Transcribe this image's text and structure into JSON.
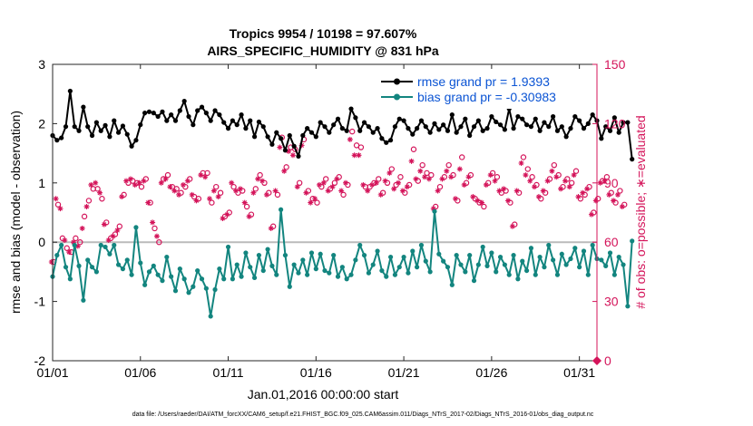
{
  "chart_data": {
    "type": "line",
    "title": "Tropics 9954 / 10198 = 97.607%",
    "subtitle": "AIRS_SPECIFIC_HUMIDITY @ 831 hPa",
    "xlabel": "Jan.01,2016 00:00:00 start",
    "ylabel": "rmse and bias (model - observation)",
    "ylabel_right": "# of obs: o=possible; ∗=evaluated",
    "x_ticks": [
      "01/01",
      "01/06",
      "01/11",
      "01/16",
      "01/21",
      "01/26",
      "01/31"
    ],
    "x_tick_days": [
      1,
      6,
      11,
      16,
      21,
      26,
      31
    ],
    "xlim": [
      1,
      32
    ],
    "y_ticks": [
      "-2",
      "-1",
      "0",
      "1",
      "2",
      "3"
    ],
    "ylim": [
      -2,
      3
    ],
    "y_ticks_right": [
      "0",
      "30",
      "60",
      "90",
      "120",
      "150"
    ],
    "ylim_right": [
      0,
      150
    ],
    "zero_line": 0,
    "legend": [
      "rmse grand pr = 1.9393",
      "bias grand pr = -0.30983"
    ],
    "colors": {
      "rmse": "#000000",
      "bias": "#13857f",
      "obs": "#d4145a",
      "legend_text": "#0b54d4",
      "zero_line": "#bbbbbb"
    },
    "series": [
      {
        "name": "rmse",
        "x_start": 1.0,
        "x_step": 0.25,
        "values": [
          1.8,
          1.72,
          1.76,
          1.95,
          2.55,
          1.95,
          1.88,
          2.28,
          1.95,
          1.8,
          2.02,
          1.88,
          1.97,
          1.78,
          2.05,
          1.85,
          1.96,
          1.82,
          1.62,
          1.72,
          1.98,
          2.18,
          2.2,
          2.18,
          2.12,
          2.2,
          2.05,
          2.15,
          2.05,
          2.22,
          2.38,
          2.12,
          1.98,
          2.22,
          2.28,
          2.18,
          2.05,
          2.22,
          2.15,
          2.02,
          1.92,
          2.05,
          1.98,
          2.15,
          1.92,
          2.05,
          1.78,
          2.03,
          1.95,
          1.78,
          1.65,
          1.85,
          1.75,
          1.55,
          1.8,
          1.62,
          1.45,
          1.8,
          1.92,
          1.85,
          1.78,
          2.02,
          1.95,
          1.85,
          1.98,
          2.08,
          1.92,
          1.88,
          2.25,
          2.1,
          1.88,
          2.02,
          1.95,
          1.85,
          1.92,
          1.75,
          1.68,
          1.72,
          1.95,
          2.08,
          2.05,
          1.92,
          1.82,
          1.92,
          2.05,
          1.95,
          1.85,
          2.0,
          1.9,
          1.98,
          1.88,
          2.15,
          1.85,
          1.95,
          2.08,
          1.8,
          1.95,
          2.05,
          1.88,
          1.92,
          2.12,
          2.03,
          1.98,
          1.9,
          2.25,
          1.92,
          2.12,
          2.08,
          1.98,
          1.95,
          2.08,
          1.88,
          2.02,
          1.95,
          2.12,
          1.88,
          1.95,
          1.78,
          1.92,
          2.12,
          2.05,
          1.92,
          2.0,
          2.15,
          2.05,
          1.75,
          1.95,
          1.88,
          2.1,
          1.85,
          2.02,
          2.02,
          1.4
        ]
      },
      {
        "name": "bias",
        "x_start": 1.0,
        "x_step": 0.25,
        "values": [
          -0.58,
          -0.22,
          -0.05,
          -0.42,
          -0.62,
          -0.05,
          -0.4,
          -0.98,
          -0.3,
          -0.42,
          -0.5,
          -0.05,
          -0.08,
          -0.2,
          -0.05,
          -0.38,
          -0.45,
          -0.3,
          -0.55,
          0.25,
          -0.35,
          -0.72,
          -0.5,
          -0.4,
          -0.55,
          -0.65,
          -0.25,
          -0.58,
          -0.82,
          -0.45,
          -0.62,
          -0.85,
          -0.75,
          -0.48,
          -0.62,
          -0.78,
          -1.25,
          -0.8,
          -0.45,
          -0.62,
          -0.08,
          -0.62,
          -0.38,
          -0.58,
          -0.18,
          -0.42,
          -0.6,
          -0.22,
          -0.48,
          -0.12,
          -0.4,
          -0.55,
          0.55,
          -0.22,
          -0.75,
          -0.38,
          -0.52,
          -0.3,
          -0.55,
          -0.18,
          -0.45,
          -0.2,
          -0.48,
          -0.52,
          -0.22,
          -0.58,
          -0.42,
          -0.62,
          -0.55,
          -0.3,
          -0.05,
          -0.22,
          -0.52,
          -0.38,
          -0.15,
          -0.48,
          -0.58,
          -0.25,
          -0.55,
          -0.42,
          -0.25,
          -0.52,
          -0.15,
          -0.42,
          -0.05,
          -0.32,
          -0.5,
          0.52,
          -0.2,
          -0.32,
          -0.42,
          -0.72,
          -0.22,
          -0.38,
          -0.5,
          -0.22,
          -0.65,
          -0.38,
          -0.08,
          -0.4,
          -0.18,
          -0.5,
          -0.25,
          -0.38,
          -0.55,
          -0.22,
          -0.62,
          -0.32,
          -0.48,
          -0.1,
          -0.55,
          -0.25,
          -0.42,
          -0.05,
          -0.3,
          -0.55,
          -0.2,
          -0.38,
          -0.28,
          -0.1,
          -0.42,
          -0.15,
          -0.55,
          -0.05,
          -0.28,
          -0.3,
          -0.4,
          -0.18,
          -0.55,
          -0.25,
          -0.38,
          -1.08,
          0.02
        ]
      },
      {
        "name": "possible obs (o)",
        "marker": "o",
        "x_start": 1.0,
        "x_step": 0.25,
        "values": [
          50,
          79,
          62,
          57,
          55,
          62,
          60,
          73,
          81,
          87,
          87,
          82,
          70,
          62,
          64,
          68,
          84,
          90,
          91,
          90,
          88,
          92,
          80,
          67,
          60,
          92,
          94,
          88,
          87,
          85,
          88,
          92,
          83,
          82,
          95,
          95,
          80,
          88,
          85,
          73,
          75,
          88,
          85,
          86,
          78,
          74,
          87,
          94,
          90,
          85,
          68,
          84,
          113,
          98,
          108,
          107,
          90,
          112,
          86,
          82,
          80,
          88,
          92,
          87,
          90,
          93,
          84,
          89,
          116,
          109,
          108,
          88,
          88,
          90,
          92,
          85,
          90,
          97,
          89,
          93,
          85,
          89,
          107,
          91,
          99,
          95,
          94,
          78,
          88,
          93,
          99,
          94,
          81,
          103,
          90,
          94,
          82,
          80,
          78,
          90,
          95,
          93,
          85,
          86,
          80,
          69,
          85,
          103,
          97,
          93,
          89,
          82,
          85,
          92,
          99,
          94,
          88,
          92,
          90,
          96,
          82,
          84,
          88,
          75,
          82,
          91,
          93,
          85,
          80,
          86,
          79
        ]
      },
      {
        "name": "evaluated obs (*)",
        "marker": "*",
        "x_start": 1.0,
        "x_step": 0.25,
        "values": [
          50,
          82,
          77,
          61,
          55,
          60,
          58,
          67,
          78,
          89,
          90,
          85,
          69,
          61,
          63,
          66,
          83,
          91,
          92,
          89,
          90,
          91,
          80,
          70,
          63,
          90,
          92,
          88,
          86,
          84,
          89,
          91,
          84,
          81,
          94,
          93,
          82,
          86,
          83,
          72,
          74,
          90,
          86,
          87,
          80,
          73,
          85,
          92,
          91,
          84,
          67,
          86,
          108,
          96,
          106,
          104,
          88,
          109,
          85,
          80,
          82,
          89,
          90,
          86,
          88,
          92,
          86,
          90,
          112,
          104,
          104,
          89,
          86,
          89,
          90,
          84,
          91,
          95,
          87,
          90,
          86,
          88,
          101,
          92,
          96,
          93,
          92,
          77,
          86,
          92,
          96,
          93,
          82,
          97,
          89,
          93,
          83,
          81,
          80,
          89,
          94,
          91,
          86,
          87,
          81,
          68,
          86,
          100,
          94,
          91,
          88,
          83,
          86,
          91,
          96,
          93,
          87,
          91,
          88,
          94,
          83,
          85,
          87,
          74,
          81,
          90,
          91,
          84,
          81,
          84,
          78
        ]
      }
    ]
  },
  "footer": "data file: /Users/raeder/DAI/ATM_forcXX/CAM6_setup/f.e21.FHIST_BGC.f09_025.CAM6assim.011/Diags_NTrS_2017-02/Diags_NTrS_2016-01/obs_diag_output.nc"
}
